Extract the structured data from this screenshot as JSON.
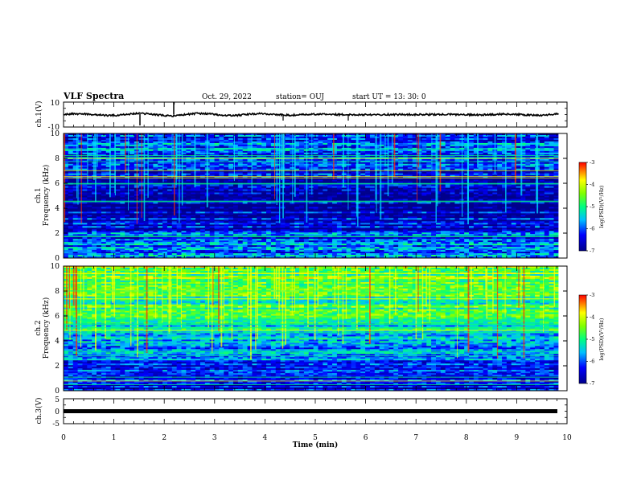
{
  "header": {
    "title": "VLF Spectra",
    "date": "Oct. 29, 2022",
    "station": "station= OUJ",
    "start": "start UT =  13: 30: 0"
  },
  "colors": {
    "spec_low": "#00008b",
    "spec_mid": "#00ff80",
    "spec_high": "#ff0000",
    "waveform": "#000000"
  },
  "chart_data": [
    {
      "name": "ch1-waveform",
      "type": "line",
      "ylabel": "ch.1(V)",
      "ylim": [
        -10,
        10
      ],
      "yticks": [
        "10",
        "-10"
      ],
      "xlim": [
        0,
        10
      ],
      "description_values": {
        "baseline_V": 0,
        "oscillation_amplitude_V": 1
      }
    },
    {
      "name": "ch1-spectrogram",
      "type": "heatmap",
      "ylabel": "Frequency (kHz)",
      "channel_label": "ch.1",
      "ylim": [
        0,
        10
      ],
      "yticks": [
        "0",
        "2",
        "4",
        "6",
        "8",
        "10"
      ],
      "xlim": [
        0,
        9.83
      ],
      "colorbar": {
        "label": "log(PSD)(V²/Hz)",
        "range": [
          -7,
          -3
        ],
        "ticks": [
          "-3",
          "-4",
          "-5",
          "-6",
          "-7"
        ]
      },
      "mean_log_psd_by_band": [
        {
          "f_kHz": 0.5,
          "value": -5.9
        },
        {
          "f_kHz": 2,
          "value": -6.2
        },
        {
          "f_kHz": 4,
          "value": -6.9
        },
        {
          "f_kHz": 6,
          "value": -6.6
        },
        {
          "f_kHz": 8,
          "value": -6.2
        },
        {
          "f_kHz": 10,
          "value": -6.0
        }
      ]
    },
    {
      "name": "ch2-spectrogram",
      "type": "heatmap",
      "ylabel": "Frequency (kHz)",
      "channel_label": "ch.2",
      "ylim": [
        0,
        10
      ],
      "yticks": [
        "0",
        "2",
        "4",
        "6",
        "8",
        "10"
      ],
      "xlim": [
        0,
        9.83
      ],
      "colorbar": {
        "label": "log(PSD)(V²/Hz)",
        "range": [
          -7,
          -3
        ],
        "ticks": [
          "-3",
          "-4",
          "-5",
          "-6",
          "-7"
        ]
      },
      "mean_log_psd_by_band": [
        {
          "f_kHz": 0.5,
          "value": -6.4
        },
        {
          "f_kHz": 2,
          "value": -6.1
        },
        {
          "f_kHz": 4,
          "value": -5.6
        },
        {
          "f_kHz": 6,
          "value": -5.0
        },
        {
          "f_kHz": 8,
          "value": -4.7
        },
        {
          "f_kHz": 10,
          "value": -4.5
        }
      ]
    },
    {
      "name": "ch3-waveform",
      "type": "line",
      "ylabel": "ch.3(V)",
      "ylim": [
        -5,
        5
      ],
      "yticks": [
        "5",
        "0",
        "-5"
      ],
      "xlim": [
        0,
        10
      ],
      "description_values": {
        "level_V": -0.5
      }
    }
  ],
  "xaxis": {
    "label": "Time  (min)",
    "ticks": [
      "0",
      "1",
      "2",
      "3",
      "4",
      "5",
      "6",
      "7",
      "8",
      "9",
      "10"
    ],
    "range": [
      0,
      10
    ]
  }
}
